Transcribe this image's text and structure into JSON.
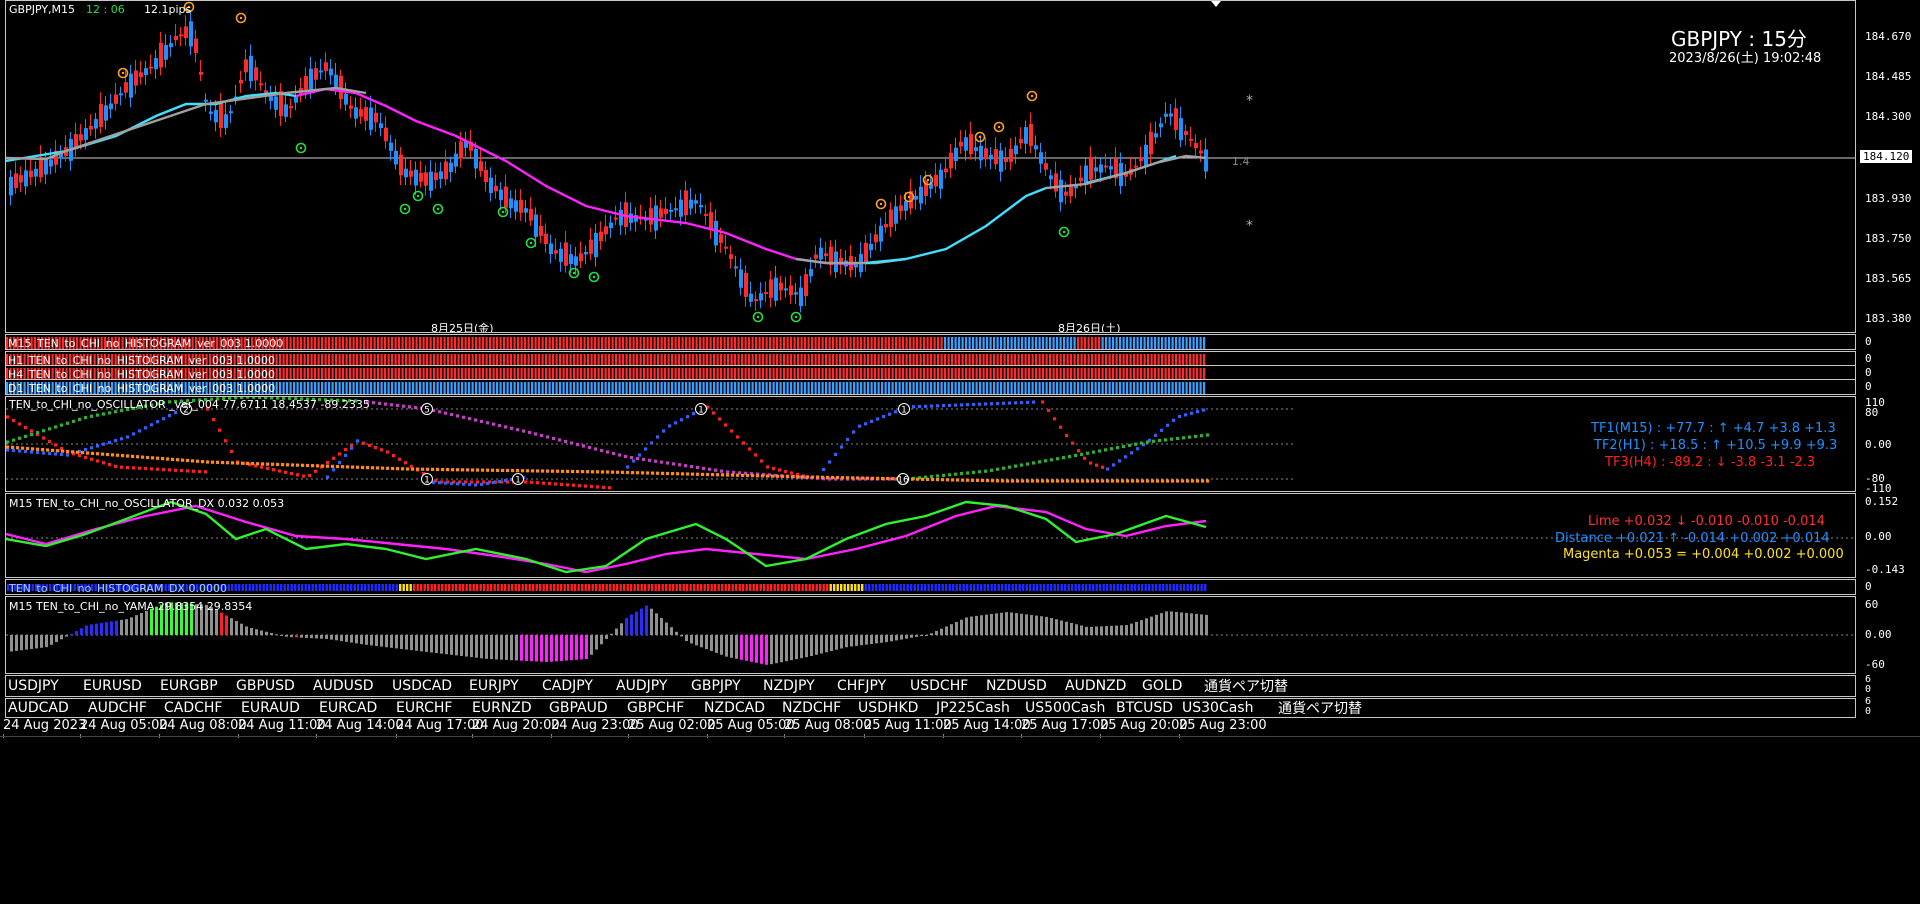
{
  "main": {
    "info": {
      "symbol": "GBPJPY,M15",
      "timer": "12 : 06",
      "pips": "12.1pips"
    },
    "corner_title": "GBPJPY : 15分",
    "corner_datetime": "2023/8/26(土) 19:02:48",
    "date_labels": [
      "8月25日(金)",
      "8月26日(土)"
    ],
    "price_labels": [
      "184.670",
      "184.485",
      "184.300",
      "184.120",
      "183.930",
      "183.750",
      "183.565",
      "183.380"
    ],
    "current_price": "184.120",
    "side_value": "1.4",
    "star": "*"
  },
  "histograms": [
    {
      "label": "M15_TEN_to_CHI_no_HISTOGRAM_ver_003 1.0000",
      "zero": "0"
    },
    {
      "label": "H1_TEN_to_CHI_no_HISTOGRAM_ver_003 1.0000",
      "zero": "0"
    },
    {
      "label": "H4_TEN_to_CHI_no_HISTOGRAM_ver_003 1.0000",
      "zero": "0"
    },
    {
      "label": "D1_TEN_to_CHI_no_HISTOGRAM_ver_003 1.0000",
      "zero": "0"
    }
  ],
  "oscillator": {
    "label": "TEN_to_CHI_no_OSCILLATOR _ver_004 77.6711 18.4537 -89.2335",
    "axis": [
      "110",
      "80",
      "0.00",
      "-80",
      "-110"
    ],
    "tf1": "TF1(M15) : +77.7 : ↑ +4.7 +3.8 +1.3",
    "tf2": "TF2(H1) : +18.5 : ↑ +10.5 +9.9 +9.3",
    "tf3": "TF3(H4) : -89.2 : ↓ -3.8 -3.1 -2.3",
    "markers": [
      "2",
      "5",
      "1",
      "1",
      "1",
      "1",
      "16"
    ],
    "tf1_color": "#1e90ff",
    "tf2_color": "#1e90ff",
    "tf3_color": "#ff2020"
  },
  "dx": {
    "label": "M15 TEN_to_CHI_no_OSCILLATOR_DX 0.032 0.053",
    "axis": [
      "0.152",
      "0.00",
      "-0.143"
    ],
    "lime": "Lime +0.032 ↓ -0.010 -0.010 -0.014",
    "distance": "Distance +0.021 ↑ -0.014 +0.002 +0.014",
    "magenta": "Magenta +0.053 = +0.004 +0.002 +0.000"
  },
  "histdx": {
    "label": "TEN_to_CHI_no_HISTOGRAM_DX 0.0000",
    "zero": "0"
  },
  "yama": {
    "label": "M15 TEN_to_CHI_no_YAMA 29.8354 29.8354",
    "axis": [
      "60",
      "0.00",
      "-60"
    ]
  },
  "pair_row1": {
    "items": [
      "USDJPY",
      "EURUSD",
      "EURGBP",
      "GBPUSD",
      "AUDUSD",
      "USDCAD",
      "EURJPY",
      "CADJPY",
      "AUDJPY",
      "GBPJPY",
      "NZDJPY",
      "CHFJPY",
      "USDCHF",
      "NZDUSD",
      "AUDNZD",
      "GOLD",
      "通貨ペア切替"
    ],
    "axis": [
      "6",
      "0"
    ]
  },
  "pair_row2": {
    "items": [
      "AUDCAD",
      "AUDCHF",
      "CADCHF",
      "EURAUD",
      "EURCAD",
      "EURCHF",
      "EURNZD",
      "GBPAUD",
      "GBPCHF",
      "NZDCAD",
      "NZDCHF",
      "USDHKD",
      "JP225Cash",
      "US500Cash",
      "BTCUSD",
      "US30Cash",
      "通貨ペア切替"
    ],
    "axis": [
      "6",
      "0"
    ]
  },
  "time_axis": [
    "24 Aug 2023",
    "24 Aug 05:00",
    "24 Aug 08:00",
    "24 Aug 11:00",
    "24 Aug 14:00",
    "24 Aug 17:00",
    "24 Aug 20:00",
    "24 Aug 23:00",
    "25 Aug 02:00",
    "25 Aug 05:00",
    "25 Aug 08:00",
    "25 Aug 11:00",
    "25 Aug 14:00",
    "25 Aug 17:00",
    "25 Aug 20:00",
    "25 Aug 23:00"
  ],
  "colors": {
    "bull": "#1e90ff",
    "bear": "#ff2a2a",
    "cyan": "#40e0ff",
    "magenta": "#ff22ff",
    "gray": "#a0a0a0",
    "lime": "#30f030",
    "orange": "#ffa020",
    "green_sig": "#20e040"
  }
}
